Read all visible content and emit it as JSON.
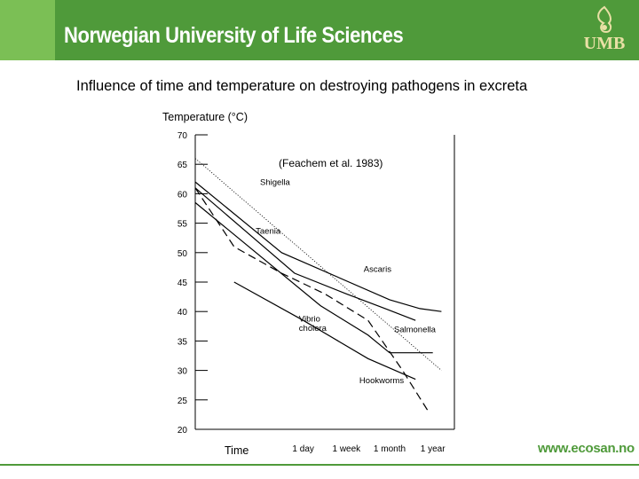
{
  "header": {
    "title": "Norwegian University of Life Sciences",
    "logo_text": "UMB"
  },
  "slide": {
    "title": "Influence of time and temperature on destroying pathogens in excreta"
  },
  "footer": {
    "url": "www.ecosan.no"
  },
  "colors": {
    "banner": "#4f9a3a",
    "banner_light": "#7bbf55",
    "logo_text": "#e9e0a5",
    "footer_text": "#4f9a3a"
  },
  "chart_data": {
    "type": "line",
    "ylabel": "Temperature (°C)",
    "xlabel": "Time",
    "citation": "(Feachem et al. 1983)",
    "yticks": [
      20,
      25,
      30,
      35,
      40,
      45,
      50,
      55,
      60,
      65,
      70
    ],
    "ylim": [
      20,
      70
    ],
    "x_tick_labels": [
      "1 day",
      "1 week",
      "1 month",
      "1 year"
    ],
    "x_tick_positions": [
      1,
      2,
      3,
      4
    ],
    "xlim": [
      -1.5,
      4.5
    ],
    "series": [
      {
        "name": "Shigella",
        "style": "dotted",
        "points": [
          [
            -1.5,
            66
          ],
          [
            4.2,
            30
          ]
        ]
      },
      {
        "name": "Ascaris",
        "style": "solid",
        "points": [
          [
            -1.5,
            62
          ],
          [
            0.5,
            50
          ],
          [
            3.0,
            42
          ],
          [
            3.7,
            40.5
          ],
          [
            4.2,
            40
          ]
        ]
      },
      {
        "name": "Taenia",
        "style": "solid",
        "points": [
          [
            -1.5,
            61
          ],
          [
            0.8,
            46.5
          ],
          [
            2.0,
            43
          ],
          [
            2.9,
            40.5
          ],
          [
            3.6,
            38.5
          ]
        ]
      },
      {
        "name": "Salmonella",
        "style": "solid",
        "points": [
          [
            -1.5,
            58.5
          ],
          [
            1.4,
            41
          ],
          [
            2.5,
            36
          ],
          [
            3.0,
            33
          ],
          [
            4.0,
            33
          ]
        ]
      },
      {
        "name": "Vibrio cholera",
        "style": "dashed",
        "points": [
          [
            -1.5,
            61
          ],
          [
            -0.6,
            51
          ],
          [
            0.5,
            46.5
          ],
          [
            1.5,
            43
          ],
          [
            2.5,
            38.5
          ],
          [
            3.3,
            30
          ],
          [
            3.9,
            23
          ]
        ]
      },
      {
        "name": "Hookworms",
        "style": "solid",
        "points": [
          [
            -0.6,
            45
          ],
          [
            1.0,
            38.5
          ],
          [
            2.5,
            32
          ],
          [
            3.6,
            28.5
          ]
        ]
      }
    ],
    "annotations": [
      {
        "text": "Shigella",
        "x": 0.0,
        "y": 61.5
      },
      {
        "text": "Taenia",
        "x": -0.1,
        "y": 53.2
      },
      {
        "text": "Ascaris",
        "x": 2.4,
        "y": 46.7
      },
      {
        "text": "Vibrio",
        "x": 0.9,
        "y": 38.3
      },
      {
        "text": "cholera",
        "x": 0.9,
        "y": 36.7
      },
      {
        "text": "Salmonella",
        "x": 3.1,
        "y": 36.5
      },
      {
        "text": "Hookworms",
        "x": 2.3,
        "y": 27.8
      }
    ]
  }
}
